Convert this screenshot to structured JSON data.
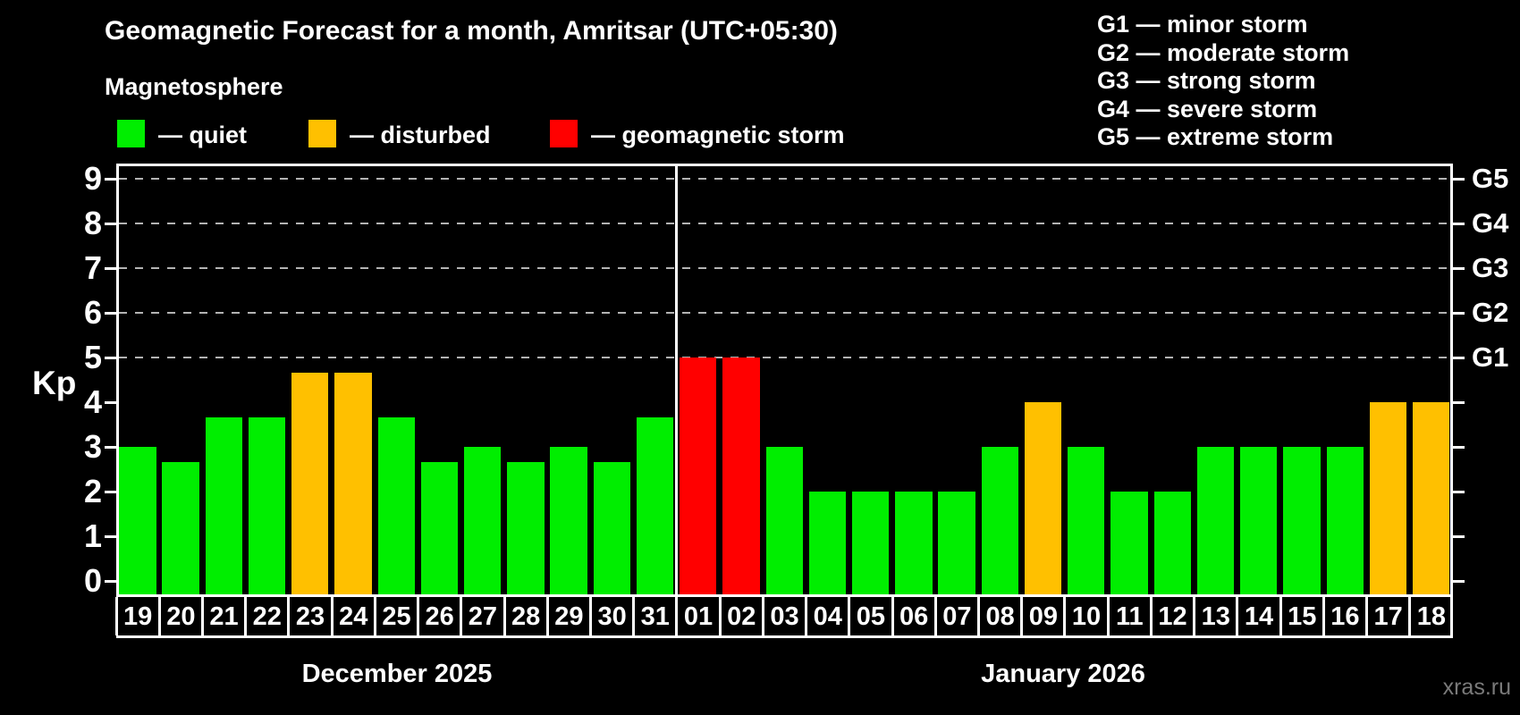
{
  "title": "Geomagnetic Forecast for a month, Amritsar (UTC+05:30)",
  "legend": {
    "title": "Magnetosphere",
    "items": [
      {
        "label": "— quiet",
        "status": "quiet",
        "color": "#00ee00"
      },
      {
        "label": "— disturbed",
        "status": "disturbed",
        "color": "#ffc000"
      },
      {
        "label": "— geomagnetic storm",
        "status": "storm",
        "color": "#ff0000"
      }
    ]
  },
  "storm_legend": [
    "G1 — minor storm",
    "G2 — moderate storm",
    "G3 — strong storm",
    "G4 — severe storm",
    "G5 — extreme storm"
  ],
  "watermark": "xras.ru",
  "chart_data": {
    "type": "bar",
    "ylabel": "Kp",
    "ylim": [
      -0.3,
      9.34
    ],
    "y_ticks": [
      0,
      1,
      2,
      3,
      4,
      5,
      6,
      7,
      8,
      9
    ],
    "gridlines_kp": [
      5,
      6,
      7,
      8,
      9
    ],
    "grid": "dashed horizontal at storm levels only",
    "legend_position": "top",
    "right_axis": [
      {
        "label": "G1",
        "kp": 5
      },
      {
        "label": "G2",
        "kp": 6
      },
      {
        "label": "G3",
        "kp": 7
      },
      {
        "label": "G4",
        "kp": 8
      },
      {
        "label": "G5",
        "kp": 9
      }
    ],
    "status_colors": {
      "quiet": "#00ee00",
      "disturbed": "#ffc000",
      "storm": "#ff0000"
    },
    "months": [
      {
        "label": "December 2025",
        "days": [
          {
            "day": "19",
            "kp": 3.0,
            "status": "quiet"
          },
          {
            "day": "20",
            "kp": 2.67,
            "status": "quiet"
          },
          {
            "day": "21",
            "kp": 3.67,
            "status": "quiet"
          },
          {
            "day": "22",
            "kp": 3.67,
            "status": "quiet"
          },
          {
            "day": "23",
            "kp": 4.67,
            "status": "disturbed"
          },
          {
            "day": "24",
            "kp": 4.67,
            "status": "disturbed"
          },
          {
            "day": "25",
            "kp": 3.67,
            "status": "quiet"
          },
          {
            "day": "26",
            "kp": 2.67,
            "status": "quiet"
          },
          {
            "day": "27",
            "kp": 3.0,
            "status": "quiet"
          },
          {
            "day": "28",
            "kp": 2.67,
            "status": "quiet"
          },
          {
            "day": "29",
            "kp": 3.0,
            "status": "quiet"
          },
          {
            "day": "30",
            "kp": 2.67,
            "status": "quiet"
          },
          {
            "day": "31",
            "kp": 3.67,
            "status": "quiet"
          }
        ]
      },
      {
        "label": "January 2026",
        "days": [
          {
            "day": "01",
            "kp": 5.0,
            "status": "storm"
          },
          {
            "day": "02",
            "kp": 5.0,
            "status": "storm"
          },
          {
            "day": "03",
            "kp": 3.0,
            "status": "quiet"
          },
          {
            "day": "04",
            "kp": 2.0,
            "status": "quiet"
          },
          {
            "day": "05",
            "kp": 2.0,
            "status": "quiet"
          },
          {
            "day": "06",
            "kp": 2.0,
            "status": "quiet"
          },
          {
            "day": "07",
            "kp": 2.0,
            "status": "quiet"
          },
          {
            "day": "08",
            "kp": 3.0,
            "status": "quiet"
          },
          {
            "day": "09",
            "kp": 4.0,
            "status": "disturbed"
          },
          {
            "day": "10",
            "kp": 3.0,
            "status": "quiet"
          },
          {
            "day": "11",
            "kp": 2.0,
            "status": "quiet"
          },
          {
            "day": "12",
            "kp": 2.0,
            "status": "quiet"
          },
          {
            "day": "13",
            "kp": 3.0,
            "status": "quiet"
          },
          {
            "day": "14",
            "kp": 3.0,
            "status": "quiet"
          },
          {
            "day": "15",
            "kp": 3.0,
            "status": "quiet"
          },
          {
            "day": "16",
            "kp": 3.0,
            "status": "quiet"
          },
          {
            "day": "17",
            "kp": 4.0,
            "status": "disturbed"
          },
          {
            "day": "18",
            "kp": 4.0,
            "status": "disturbed"
          }
        ]
      }
    ]
  }
}
